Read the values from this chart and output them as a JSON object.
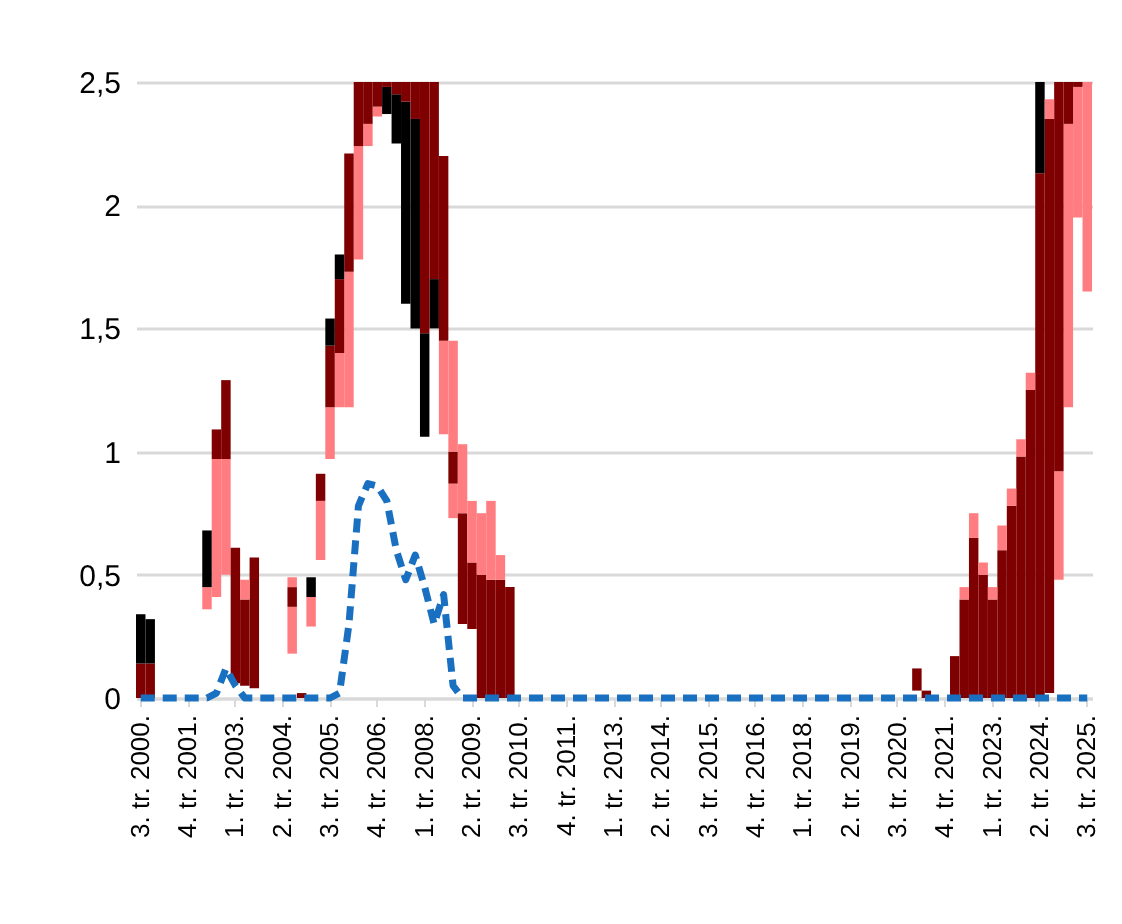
{
  "chart_data": {
    "type": "bar",
    "categories": [
      "3. tr. 2000.",
      null,
      null,
      null,
      null,
      "4. tr. 2001.",
      null,
      null,
      null,
      null,
      "1. tr. 2003.",
      null,
      null,
      null,
      null,
      "2. tr. 2004.",
      null,
      null,
      null,
      null,
      "3. tr. 2005.",
      null,
      null,
      null,
      null,
      "4. tr. 2006.",
      null,
      null,
      null,
      null,
      "1. tr. 2008.",
      null,
      null,
      null,
      null,
      "2. tr. 2009.",
      null,
      null,
      null,
      null,
      "3. tr. 2010.",
      null,
      null,
      null,
      null,
      "4. tr. 2011.",
      null,
      null,
      null,
      null,
      "1. tr. 2013.",
      null,
      null,
      null,
      null,
      "2. tr. 2014.",
      null,
      null,
      null,
      null,
      "3. tr. 2015.",
      null,
      null,
      null,
      null,
      "4. tr. 2016.",
      null,
      null,
      null,
      null,
      "1. tr. 2018.",
      null,
      null,
      null,
      null,
      "2. tr. 2019.",
      null,
      null,
      null,
      null,
      "3. tr. 2020.",
      null,
      null,
      null,
      null,
      "4. tr. 2021.",
      null,
      null,
      null,
      null,
      "1. tr. 2023.",
      null,
      null,
      null,
      null,
      "2. tr. 2024.",
      null,
      null,
      null,
      null,
      "3. tr. 2025."
    ],
    "series": [
      {
        "color": "#ff7c80",
        "values": [
          null,
          null,
          null,
          null,
          null,
          null,
          null,
          0.09,
          0.56,
          0.47,
          null,
          null,
          null,
          null,
          null,
          null,
          0.19,
          null,
          0.12,
          0.24,
          0.21,
          0.22,
          0.55,
          0.46,
          0.09,
          0.04,
          null,
          null,
          null,
          null,
          null,
          null,
          0.38,
          0.14,
          null,
          null,
          null,
          null,
          null,
          null,
          null,
          null,
          null,
          null,
          null,
          null,
          null,
          null,
          null,
          null,
          null,
          null,
          null,
          null,
          null,
          null,
          null,
          null,
          null,
          null,
          null,
          null,
          null,
          null,
          null,
          null,
          null,
          null,
          null,
          null,
          null,
          null,
          null,
          null,
          null,
          null,
          null,
          null,
          null,
          null,
          null,
          null,
          null,
          null,
          null,
          null,
          null,
          null,
          null,
          null,
          null,
          null,
          null,
          null,
          null,
          null,
          null,
          0.44,
          1.15,
          0.53,
          0.85
        ],
        "base": [
          null,
          null,
          null,
          null,
          null,
          null,
          null,
          0.36,
          0.41,
          0.5,
          null,
          null,
          null,
          null,
          null,
          null,
          0.18,
          null,
          0.29,
          0.56,
          0.97,
          1.18,
          1.18,
          1.78,
          2.24,
          2.36,
          null,
          null,
          null,
          null,
          null,
          null,
          1.07,
          0.73,
          null,
          null,
          null,
          null,
          null,
          null,
          null,
          null,
          null,
          null,
          null,
          null,
          null,
          null,
          null,
          null,
          null,
          null,
          null,
          null,
          null,
          null,
          null,
          null,
          null,
          null,
          null,
          null,
          null,
          null,
          null,
          null,
          null,
          null,
          null,
          null,
          null,
          null,
          null,
          null,
          null,
          null,
          null,
          null,
          null,
          null,
          null,
          null,
          null,
          null,
          null,
          null,
          null,
          null,
          null,
          null,
          null,
          null,
          null,
          null,
          null,
          null,
          null,
          0.48,
          1.18,
          1.95,
          1.65
        ]
      },
      {
        "color": "#7f0000",
        "values": [
          0.14,
          0.14,
          null,
          null,
          null,
          null,
          null,
          null,
          null,
          null,
          0.55,
          0.35,
          0.53,
          null,
          null,
          null,
          0.08,
          0.02,
          null,
          0.11,
          0.25,
          0.3,
          0.48,
          0.26,
          0.17,
          0.1,
          null,
          null,
          null,
          null,
          null,
          null,
          null,
          0.13,
          0.45,
          0.27,
          0.5,
          0.48,
          0.48,
          0.45,
          null,
          null,
          null,
          null,
          null,
          null,
          null,
          null,
          null,
          null,
          null,
          null,
          null,
          null,
          null,
          null,
          null,
          null,
          null,
          null,
          null,
          null,
          null,
          null,
          null,
          null,
          null,
          null,
          null,
          null,
          null,
          null,
          null,
          null,
          null,
          null,
          null,
          null,
          null,
          null,
          null,
          null,
          0.09,
          0.03,
          null,
          null,
          0.17,
          0.4,
          0.65,
          0.5,
          0.4,
          0.6,
          0.78,
          0.98,
          1.25,
          2.13,
          2.33,
          1.58,
          null,
          null,
          null
        ],
        "base": [
          0,
          0,
          null,
          null,
          null,
          null,
          null,
          null,
          null,
          null,
          0.06,
          0.05,
          0.04,
          null,
          null,
          null,
          0.37,
          0,
          null,
          0.8,
          1.18,
          1.4,
          1.73,
          2.24,
          2.33,
          2.4,
          null,
          null,
          null,
          null,
          null,
          null,
          null,
          0.87,
          0.3,
          0.28,
          0,
          0,
          0,
          0,
          null,
          null,
          null,
          null,
          null,
          null,
          null,
          null,
          null,
          null,
          null,
          null,
          null,
          null,
          null,
          null,
          null,
          null,
          null,
          null,
          null,
          null,
          null,
          null,
          null,
          null,
          null,
          null,
          null,
          null,
          null,
          null,
          null,
          null,
          null,
          null,
          null,
          null,
          null,
          null,
          null,
          null,
          0.03,
          0,
          null,
          null,
          0,
          0,
          0,
          0,
          0,
          0,
          0,
          0,
          0,
          0,
          0.02,
          0.92,
          null,
          null,
          null
        ]
      },
      {
        "color": "#000000",
        "values": [
          0.2,
          0.18,
          null,
          null,
          null,
          null,
          null,
          0.23,
          null,
          null,
          null,
          null,
          null,
          null,
          null,
          null,
          null,
          null,
          0.08,
          null,
          0.11,
          0.1,
          null,
          null,
          null,
          null,
          0.11,
          0.2,
          0.82,
          0.85,
          0.42,
          0.2,
          null,
          null,
          null,
          null,
          null,
          null,
          null,
          null,
          null,
          null,
          null,
          null,
          null,
          null,
          null,
          null,
          null,
          null,
          null,
          null,
          null,
          null,
          null,
          null,
          null,
          null,
          null,
          null,
          null,
          null,
          null,
          null,
          null,
          null,
          null,
          null,
          null,
          null,
          null,
          null,
          null,
          null,
          null,
          null,
          null,
          null,
          null,
          null,
          null,
          null,
          null,
          null,
          null,
          null,
          null,
          null,
          null,
          null,
          null,
          null,
          null,
          null,
          null,
          0.37,
          null,
          null,
          null,
          null,
          null
        ],
        "base": [
          0.14,
          0.14,
          null,
          null,
          null,
          null,
          null,
          0.45,
          null,
          null,
          null,
          null,
          null,
          null,
          null,
          null,
          null,
          null,
          0.41,
          null,
          1.43,
          1.7,
          null,
          null,
          null,
          null,
          2.37,
          2.25,
          1.6,
          1.5,
          1.06,
          1.5,
          null,
          null,
          null,
          null,
          null,
          null,
          null,
          null,
          null,
          null,
          null,
          null,
          null,
          null,
          null,
          null,
          null,
          null,
          null,
          null,
          null,
          null,
          null,
          null,
          null,
          null,
          null,
          null,
          null,
          null,
          null,
          null,
          null,
          null,
          null,
          null,
          null,
          null,
          null,
          null,
          null,
          null,
          null,
          null,
          null,
          null,
          null,
          null,
          null,
          null,
          null,
          null,
          null,
          null,
          null,
          null,
          null,
          null,
          null,
          null,
          null,
          null,
          null,
          2.13,
          null,
          null,
          null,
          null,
          null
        ]
      },
      {
        "color": "#7f0000",
        "values": [
          null,
          null,
          null,
          null,
          null,
          null,
          null,
          null,
          0.12,
          0.32,
          null,
          null,
          null,
          null,
          null,
          null,
          null,
          null,
          null,
          null,
          null,
          null,
          null,
          null,
          null,
          null,
          0.02,
          0.05,
          0.08,
          0.15,
          1.02,
          0.8,
          0.75,
          null,
          null,
          null,
          null,
          null,
          null,
          null,
          null,
          null,
          null,
          null,
          null,
          null,
          null,
          null,
          null,
          null,
          null,
          null,
          null,
          null,
          null,
          null,
          null,
          null,
          null,
          null,
          null,
          null,
          null,
          null,
          null,
          null,
          null,
          null,
          null,
          null,
          null,
          null,
          null,
          null,
          null,
          null,
          null,
          null,
          null,
          null,
          null,
          null,
          null,
          null,
          null,
          null,
          null,
          null,
          null,
          null,
          null,
          null,
          null,
          null,
          null,
          null,
          null,
          null,
          0.17,
          0.02,
          null
        ],
        "base": [
          null,
          null,
          null,
          null,
          null,
          null,
          null,
          null,
          0.97,
          0.97,
          null,
          null,
          null,
          null,
          null,
          null,
          null,
          null,
          null,
          null,
          null,
          null,
          null,
          null,
          null,
          null,
          2.48,
          2.45,
          2.42,
          2.35,
          1.48,
          1.7,
          1.45,
          null,
          null,
          null,
          null,
          null,
          null,
          null,
          null,
          null,
          null,
          null,
          null,
          null,
          null,
          null,
          null,
          null,
          null,
          null,
          null,
          null,
          null,
          null,
          null,
          null,
          null,
          null,
          null,
          null,
          null,
          null,
          null,
          null,
          null,
          null,
          null,
          null,
          null,
          null,
          null,
          null,
          null,
          null,
          null,
          null,
          null,
          null,
          null,
          null,
          null,
          null,
          null,
          null,
          null,
          null,
          null,
          null,
          null,
          null,
          null,
          null,
          null,
          null,
          null,
          null,
          2.33,
          2.48,
          null
        ]
      },
      {
        "color": "#ff7c80",
        "values": [
          null,
          null,
          null,
          null,
          null,
          null,
          null,
          null,
          null,
          null,
          null,
          0.08,
          null,
          null,
          null,
          null,
          0.04,
          null,
          null,
          null,
          null,
          null,
          null,
          null,
          null,
          null,
          null,
          null,
          null,
          null,
          null,
          null,
          null,
          0.45,
          0.28,
          0.25,
          0.25,
          0.32,
          0.1,
          null,
          null,
          null,
          null,
          null,
          null,
          null,
          null,
          null,
          null,
          null,
          null,
          null,
          null,
          null,
          null,
          null,
          null,
          null,
          null,
          null,
          null,
          null,
          null,
          null,
          null,
          null,
          null,
          null,
          null,
          null,
          null,
          null,
          null,
          null,
          null,
          null,
          null,
          null,
          null,
          null,
          null,
          null,
          null,
          null,
          null,
          null,
          null,
          0.05,
          0.1,
          0.05,
          0.05,
          0.1,
          0.07,
          0.07,
          0.07,
          null,
          0.08,
          null,
          null,
          null,
          null
        ],
        "base": [
          null,
          null,
          null,
          null,
          null,
          null,
          null,
          null,
          null,
          null,
          null,
          0.4,
          null,
          null,
          null,
          null,
          0.45,
          null,
          null,
          null,
          null,
          null,
          null,
          null,
          null,
          null,
          null,
          null,
          null,
          null,
          null,
          null,
          null,
          1.0,
          0.75,
          0.55,
          0.5,
          0.48,
          0.48,
          null,
          null,
          null,
          null,
          null,
          null,
          null,
          null,
          null,
          null,
          null,
          null,
          null,
          null,
          null,
          null,
          null,
          null,
          null,
          null,
          null,
          null,
          null,
          null,
          null,
          null,
          null,
          null,
          null,
          null,
          null,
          null,
          null,
          null,
          null,
          null,
          null,
          null,
          null,
          null,
          null,
          null,
          null,
          null,
          null,
          null,
          null,
          null,
          0.4,
          0.65,
          0.5,
          0.4,
          0.6,
          0.78,
          0.98,
          1.25,
          null,
          2.35,
          null,
          null,
          null,
          null
        ]
      },
      {
        "type": "line",
        "color": "#1a70c0",
        "line_style": "dashed",
        "values": [
          0,
          0,
          0,
          0,
          0,
          0,
          0,
          0,
          0.02,
          0.12,
          0.05,
          0,
          0,
          0,
          0,
          0,
          0,
          0,
          0,
          0,
          0,
          0.02,
          0.3,
          0.78,
          0.87,
          0.86,
          0.8,
          0.6,
          0.48,
          0.58,
          0.45,
          0.3,
          0.42,
          0.05,
          0,
          0,
          0,
          0,
          0,
          0,
          0,
          0,
          0,
          0,
          0,
          0,
          0,
          0,
          0,
          0,
          0,
          0,
          0,
          0,
          0,
          0,
          0,
          0,
          0,
          0,
          0,
          0,
          0,
          0,
          0,
          0,
          0,
          0,
          0,
          0,
          0,
          0,
          0,
          0,
          0,
          0,
          0,
          0,
          0,
          0,
          0,
          0,
          0,
          0,
          0,
          0,
          0,
          0,
          0,
          0,
          0,
          0,
          0,
          0,
          0,
          0,
          0,
          0,
          0,
          0,
          0
        ]
      }
    ],
    "ylim": [
      0,
      2.5
    ],
    "yticks": [
      0,
      {
        "value": 0.5,
        "label": "0,5"
      },
      1,
      {
        "value": 1.5,
        "label": "1,5"
      },
      2,
      {
        "value": 2.5,
        "label": "2,5"
      }
    ],
    "grid": "y",
    "marker": "none"
  }
}
